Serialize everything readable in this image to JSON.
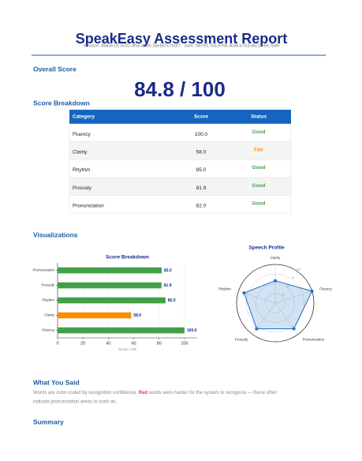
{
  "header": {
    "title": "SpeakEasy Assessment Report",
    "session": "Session: 8683e1f1-0c02-4f58-8600-3de8d7e7b0f7 · User: 0870f170d-8768-4048-b753-d6c14d9c7b86"
  },
  "overall": {
    "heading": "Overall Score",
    "score": "84.8 / 100"
  },
  "breakdown": {
    "heading": "Score Breakdown",
    "table": {
      "columns": [
        "Category",
        "Score",
        "Status"
      ],
      "rows": [
        {
          "category": "Fluency",
          "score": "100.0",
          "status": "Good",
          "status_color": "#43a047"
        },
        {
          "category": "Clarity",
          "score": "58.0",
          "status": "Fair",
          "status_color": "#fb8c00"
        },
        {
          "category": "Rhythm",
          "score": "85.0",
          "status": "Good",
          "status_color": "#43a047"
        },
        {
          "category": "Prosody",
          "score": "81.9",
          "status": "Good",
          "status_color": "#43a047"
        },
        {
          "category": "Pronunciation",
          "score": "82.0",
          "status": "Good",
          "status_color": "#43a047"
        }
      ]
    }
  },
  "visualizations": {
    "heading": "Visualizations"
  },
  "chart_data": [
    {
      "type": "bar",
      "orientation": "horizontal",
      "title": "Score Breakdown",
      "categories": [
        "Fluency",
        "Clarity",
        "Rhythm",
        "Prosody",
        "Pronunciation"
      ],
      "values": [
        100,
        58,
        85,
        81.9,
        82
      ],
      "value_labels": [
        "100.0",
        "58.0",
        "85.0",
        "81.9",
        "82.0"
      ],
      "colors": [
        "#43a047",
        "#fb8c00",
        "#43a047",
        "#43a047",
        "#43a047"
      ],
      "xlabel": "Score / 100",
      "xlim": [
        0,
        110
      ],
      "xticks": [
        0,
        20,
        40,
        60,
        80,
        100
      ],
      "grid": true
    },
    {
      "type": "radar",
      "title": "Speech Profile",
      "categories": [
        "Fluency",
        "Clarity",
        "Rhythm",
        "Prosody",
        "Pronunciation"
      ],
      "values": [
        100,
        58,
        85,
        81.9,
        82
      ],
      "color": "#1f6fc5",
      "rlim": [
        0,
        100
      ],
      "rticks": [
        25,
        50,
        75,
        100
      ]
    }
  ],
  "what_you_said": {
    "heading": "What You Said",
    "text_before": "Words are color-coded by recognition confidence. ",
    "highlight": "Red",
    "text_after": " words were harder for the system to recognize — these often",
    "text_line2": "indicate pronunciation areas to work on."
  },
  "summary": {
    "heading": "Summary"
  }
}
